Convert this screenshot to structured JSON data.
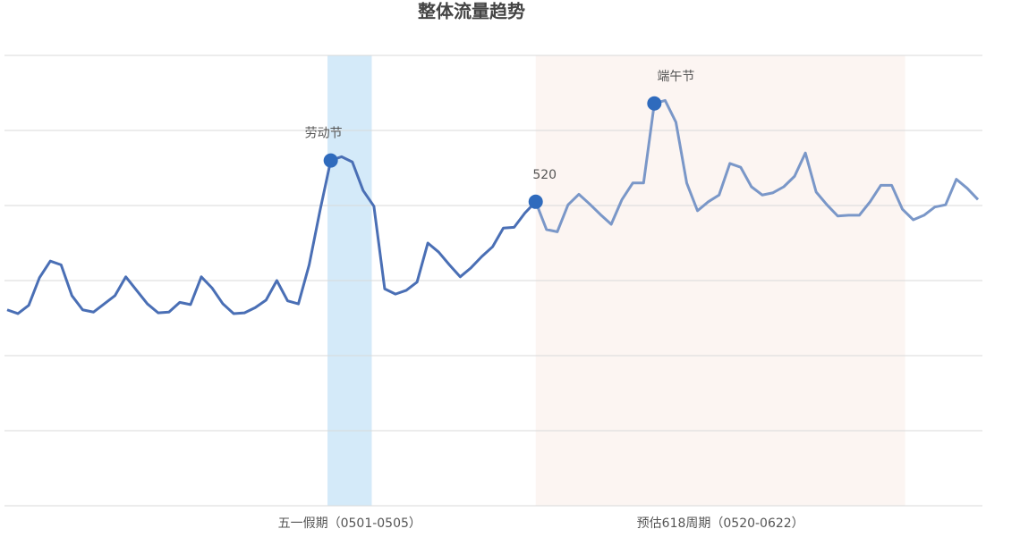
{
  "chart_data": {
    "type": "line",
    "title": "整体流量趋势",
    "categories": [
      null,
      null,
      null,
      null,
      null,
      null,
      null,
      null,
      null,
      null,
      null,
      null,
      null,
      null,
      null,
      null,
      null,
      null,
      null,
      null,
      null,
      null,
      null,
      null,
      null,
      null,
      null,
      null,
      null,
      null,
      null,
      null,
      null,
      null,
      null,
      null,
      null,
      null,
      null,
      null,
      null,
      null,
      null,
      null,
      null,
      null,
      null,
      null,
      null,
      null,
      null,
      null,
      null,
      null,
      null,
      null,
      null,
      null,
      null,
      null,
      null,
      null,
      null,
      null,
      null,
      null,
      null,
      null,
      null,
      null,
      null,
      null,
      null,
      null,
      null,
      null,
      null,
      null,
      null,
      null,
      null,
      null,
      null,
      null,
      null,
      null,
      null,
      null,
      null,
      null,
      null
    ],
    "series": [
      {
        "color": "#4a6fb5",
        "projected_color": "#7a97c8",
        "projected_from": 49,
        "values": [
          2.61,
          2.56,
          2.67,
          3.04,
          3.26,
          3.21,
          2.8,
          2.61,
          2.58,
          2.69,
          2.8,
          3.05,
          2.87,
          2.69,
          2.57,
          2.58,
          2.71,
          2.68,
          3.05,
          2.9,
          2.69,
          2.56,
          2.57,
          2.64,
          2.74,
          3.0,
          2.73,
          2.69,
          3.21,
          3.93,
          4.6,
          4.65,
          4.58,
          4.2,
          3.99,
          2.89,
          2.82,
          2.87,
          2.98,
          3.5,
          3.38,
          3.21,
          3.05,
          3.17,
          3.32,
          3.45,
          3.7,
          3.71,
          3.9,
          4.05,
          3.68,
          3.65,
          4.01,
          4.15,
          4.02,
          3.88,
          3.75,
          4.08,
          4.3,
          4.3,
          5.36,
          5.4,
          5.11,
          4.3,
          3.93,
          4.05,
          4.14,
          4.56,
          4.51,
          4.25,
          4.14,
          4.17,
          4.25,
          4.39,
          4.7,
          4.18,
          4.01,
          3.86,
          3.87,
          3.87,
          4.05,
          4.27,
          4.27,
          3.95,
          3.81,
          3.87,
          3.98,
          4.01,
          4.35,
          4.23,
          4.08
        ]
      }
    ],
    "annotations": [
      {
        "index": 30,
        "label": "劳动节"
      },
      {
        "index": 49,
        "label": "520"
      },
      {
        "index": 60,
        "label": "端午节"
      }
    ],
    "bands": [
      {
        "label": "五一假期（0501-0505）",
        "from": 29.7,
        "to": 33.8,
        "color": "#d4eaf9"
      },
      {
        "label": "预估618周期（0520-0622）",
        "from": 49,
        "to": 83.25,
        "color": "#fcf5f2"
      }
    ],
    "marker_color": "#2f6bbd",
    "ylim": [
      0,
      6
    ],
    "gridlines": [
      0,
      1,
      2,
      3,
      4,
      5,
      6
    ],
    "grid": true
  }
}
